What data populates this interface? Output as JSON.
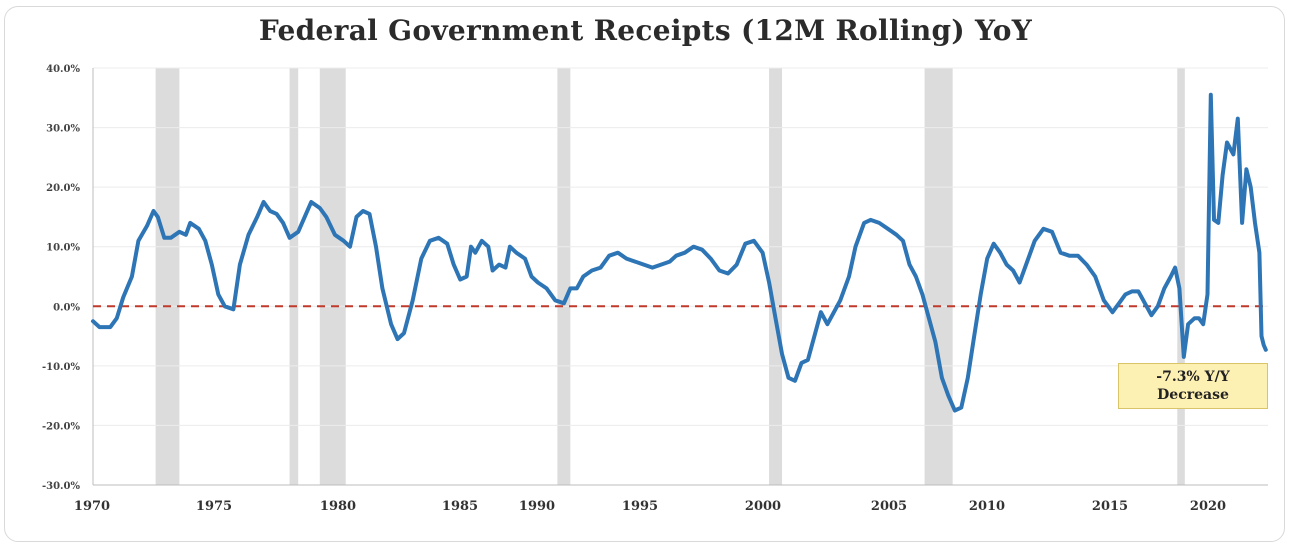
{
  "chart_data": {
    "type": "line",
    "title": "Federal Government Receipts (12M Rolling) YoY",
    "xlabel": "",
    "ylabel": "",
    "xlim": [
      1970,
      2022.9
    ],
    "ylim": [
      -30,
      40
    ],
    "y_ticks": [
      40,
      30,
      20,
      10,
      0,
      -10,
      -20,
      -30
    ],
    "y_tick_labels": [
      "40.0%",
      "30.0%",
      "20.0%",
      "10.0%",
      "0.0%",
      "-10.0%",
      "-20.0%",
      "-30.0%"
    ],
    "x_ticks": [
      1970,
      1975,
      1980,
      1985,
      1990,
      1995,
      2000,
      2005,
      2010,
      2015,
      2020
    ],
    "x_tick_labels": [
      "1970",
      "1975",
      "1980",
      "1985",
      "1990",
      "1995",
      "2000",
      "2005",
      "2010",
      "2015",
      "2020"
    ],
    "grid": true,
    "reference_line": {
      "y": 0,
      "style": "dashed",
      "color": "#c0392b"
    },
    "recession_shading": [
      [
        1973.9,
        1975.2
      ],
      [
        1980.0,
        1980.5
      ],
      [
        1981.5,
        1982.9
      ],
      [
        1990.6,
        1991.2
      ],
      [
        2001.2,
        2001.9
      ],
      [
        2007.9,
        2009.5
      ],
      [
        2020.1,
        2020.4
      ]
    ],
    "series": [
      {
        "color": "#2e75b6",
        "points": [
          [
            1970.0,
            -2.5
          ],
          [
            1970.3,
            -3.5
          ],
          [
            1970.8,
            -3.5
          ],
          [
            1971.1,
            -2.0
          ],
          [
            1971.4,
            1.5
          ],
          [
            1971.8,
            5.0
          ],
          [
            1972.1,
            11.0
          ],
          [
            1972.5,
            13.5
          ],
          [
            1972.8,
            16.0
          ],
          [
            1973.0,
            15.0
          ],
          [
            1973.3,
            11.5
          ],
          [
            1973.6,
            11.5
          ],
          [
            1974.0,
            12.5
          ],
          [
            1974.3,
            12.0
          ],
          [
            1974.5,
            14.0
          ],
          [
            1974.9,
            13.0
          ],
          [
            1975.2,
            11.0
          ],
          [
            1975.5,
            7.0
          ],
          [
            1975.8,
            2.0
          ],
          [
            1976.1,
            0.0
          ],
          [
            1976.5,
            -0.5
          ],
          [
            1976.8,
            7.0
          ],
          [
            1977.2,
            12.0
          ],
          [
            1977.6,
            15.0
          ],
          [
            1977.9,
            17.5
          ],
          [
            1978.2,
            16.0
          ],
          [
            1978.5,
            15.5
          ],
          [
            1978.8,
            14.0
          ],
          [
            1979.1,
            11.5
          ],
          [
            1979.5,
            12.5
          ],
          [
            1979.8,
            15.0
          ],
          [
            1980.1,
            17.5
          ],
          [
            1980.5,
            16.5
          ],
          [
            1980.8,
            15.0
          ],
          [
            1981.2,
            12.0
          ],
          [
            1981.6,
            11.0
          ],
          [
            1981.9,
            10.0
          ],
          [
            1982.2,
            15.0
          ],
          [
            1982.5,
            16.0
          ],
          [
            1982.8,
            15.5
          ],
          [
            1983.1,
            10.0
          ],
          [
            1983.4,
            3.0
          ],
          [
            1983.8,
            -3.0
          ],
          [
            1984.1,
            -5.5
          ],
          [
            1984.4,
            -4.5
          ],
          [
            1984.8,
            1.0
          ],
          [
            1985.2,
            8.0
          ],
          [
            1985.6,
            11.0
          ],
          [
            1986.0,
            11.5
          ],
          [
            1986.4,
            10.5
          ],
          [
            1986.7,
            7.0
          ],
          [
            1987.0,
            4.5
          ],
          [
            1987.3,
            5.0
          ],
          [
            1987.5,
            10.0
          ],
          [
            1987.7,
            9.0
          ],
          [
            1988.0,
            11.0
          ],
          [
            1988.3,
            10.0
          ],
          [
            1988.5,
            6.0
          ],
          [
            1988.8,
            7.0
          ],
          [
            1989.1,
            6.5
          ],
          [
            1989.3,
            10.0
          ],
          [
            1989.6,
            9.0
          ],
          [
            1990.0,
            8.0
          ],
          [
            1990.3,
            5.0
          ],
          [
            1990.6,
            4.0
          ],
          [
            1991.0,
            3.0
          ],
          [
            1991.4,
            1.0
          ],
          [
            1991.8,
            0.5
          ],
          [
            1992.1,
            3.0
          ],
          [
            1992.4,
            3.0
          ],
          [
            1992.7,
            5.0
          ],
          [
            1993.1,
            6.0
          ],
          [
            1993.5,
            6.5
          ],
          [
            1993.9,
            8.5
          ],
          [
            1994.3,
            9.0
          ],
          [
            1994.7,
            8.0
          ],
          [
            1995.1,
            7.5
          ],
          [
            1995.5,
            7.0
          ],
          [
            1995.9,
            6.5
          ],
          [
            1996.3,
            7.0
          ],
          [
            1996.7,
            7.5
          ],
          [
            1997.0,
            8.5
          ],
          [
            1997.4,
            9.0
          ],
          [
            1997.8,
            10.0
          ],
          [
            1998.2,
            9.5
          ],
          [
            1998.6,
            8.0
          ],
          [
            1999.0,
            6.0
          ],
          [
            1999.4,
            5.5
          ],
          [
            1999.8,
            7.0
          ],
          [
            2000.2,
            10.5
          ],
          [
            2000.6,
            11.0
          ],
          [
            2001.0,
            9.0
          ],
          [
            2001.3,
            4.0
          ],
          [
            2001.6,
            -2.0
          ],
          [
            2001.9,
            -8.0
          ],
          [
            2002.2,
            -12.0
          ],
          [
            2002.5,
            -12.5
          ],
          [
            2002.8,
            -9.5
          ],
          [
            2003.1,
            -9.0
          ],
          [
            2003.4,
            -5.0
          ],
          [
            2003.7,
            -1.0
          ],
          [
            2004.0,
            -3.0
          ],
          [
            2004.3,
            -1.0
          ],
          [
            2004.6,
            1.0
          ],
          [
            2005.0,
            5.0
          ],
          [
            2005.3,
            10.0
          ],
          [
            2005.7,
            14.0
          ],
          [
            2006.0,
            14.5
          ],
          [
            2006.4,
            14.0
          ],
          [
            2006.8,
            13.0
          ],
          [
            2007.2,
            12.0
          ],
          [
            2007.5,
            11.0
          ],
          [
            2007.8,
            7.0
          ],
          [
            2008.1,
            5.0
          ],
          [
            2008.4,
            2.0
          ],
          [
            2008.7,
            -2.0
          ],
          [
            2009.0,
            -6.0
          ],
          [
            2009.3,
            -12.0
          ],
          [
            2009.6,
            -15.0
          ],
          [
            2009.9,
            -17.5
          ],
          [
            2010.2,
            -17.0
          ],
          [
            2010.5,
            -12.0
          ],
          [
            2010.8,
            -5.0
          ],
          [
            2011.1,
            2.0
          ],
          [
            2011.4,
            8.0
          ],
          [
            2011.7,
            10.5
          ],
          [
            2012.0,
            9.0
          ],
          [
            2012.3,
            7.0
          ],
          [
            2012.6,
            6.0
          ],
          [
            2012.9,
            4.0
          ],
          [
            2013.2,
            7.0
          ],
          [
            2013.6,
            11.0
          ],
          [
            2014.0,
            13.0
          ],
          [
            2014.4,
            12.5
          ],
          [
            2014.8,
            9.0
          ],
          [
            2015.2,
            8.5
          ],
          [
            2015.6,
            8.5
          ],
          [
            2016.0,
            7.0
          ],
          [
            2016.4,
            5.0
          ],
          [
            2016.8,
            1.0
          ],
          [
            2017.2,
            -1.0
          ],
          [
            2017.5,
            0.5
          ],
          [
            2017.8,
            2.0
          ],
          [
            2018.1,
            2.5
          ],
          [
            2018.4,
            2.5
          ],
          [
            2018.7,
            0.5
          ],
          [
            2019.0,
            -1.5
          ],
          [
            2019.3,
            0.0
          ],
          [
            2019.6,
            3.0
          ],
          [
            2019.9,
            5.0
          ],
          [
            2020.1,
            6.5
          ],
          [
            2020.3,
            3.0
          ],
          [
            2020.5,
            -8.5
          ],
          [
            2020.7,
            -3.0
          ],
          [
            2021.0,
            -2.0
          ],
          [
            2021.2,
            -2.0
          ],
          [
            2021.4,
            -3.0
          ],
          [
            2021.6,
            2.0
          ],
          [
            2021.75,
            35.5
          ],
          [
            2021.9,
            14.5
          ],
          [
            2022.1,
            14.0
          ],
          [
            2022.3,
            22.0
          ],
          [
            2022.5,
            27.5
          ],
          [
            2022.8,
            25.5
          ],
          [
            2023.0,
            31.5
          ],
          [
            2023.2,
            14.0
          ],
          [
            2023.4,
            23.0
          ],
          [
            2023.6,
            20.0
          ],
          [
            2023.8,
            14.0
          ],
          [
            2024.0,
            9.0
          ],
          [
            2024.1,
            -5.0
          ],
          [
            2024.2,
            -6.5
          ],
          [
            2024.3,
            -7.3
          ]
        ]
      }
    ],
    "annotations": [
      {
        "text_line1": "-7.3% Y/Y",
        "text_line2": "Decrease",
        "style": "yellow box"
      }
    ]
  }
}
